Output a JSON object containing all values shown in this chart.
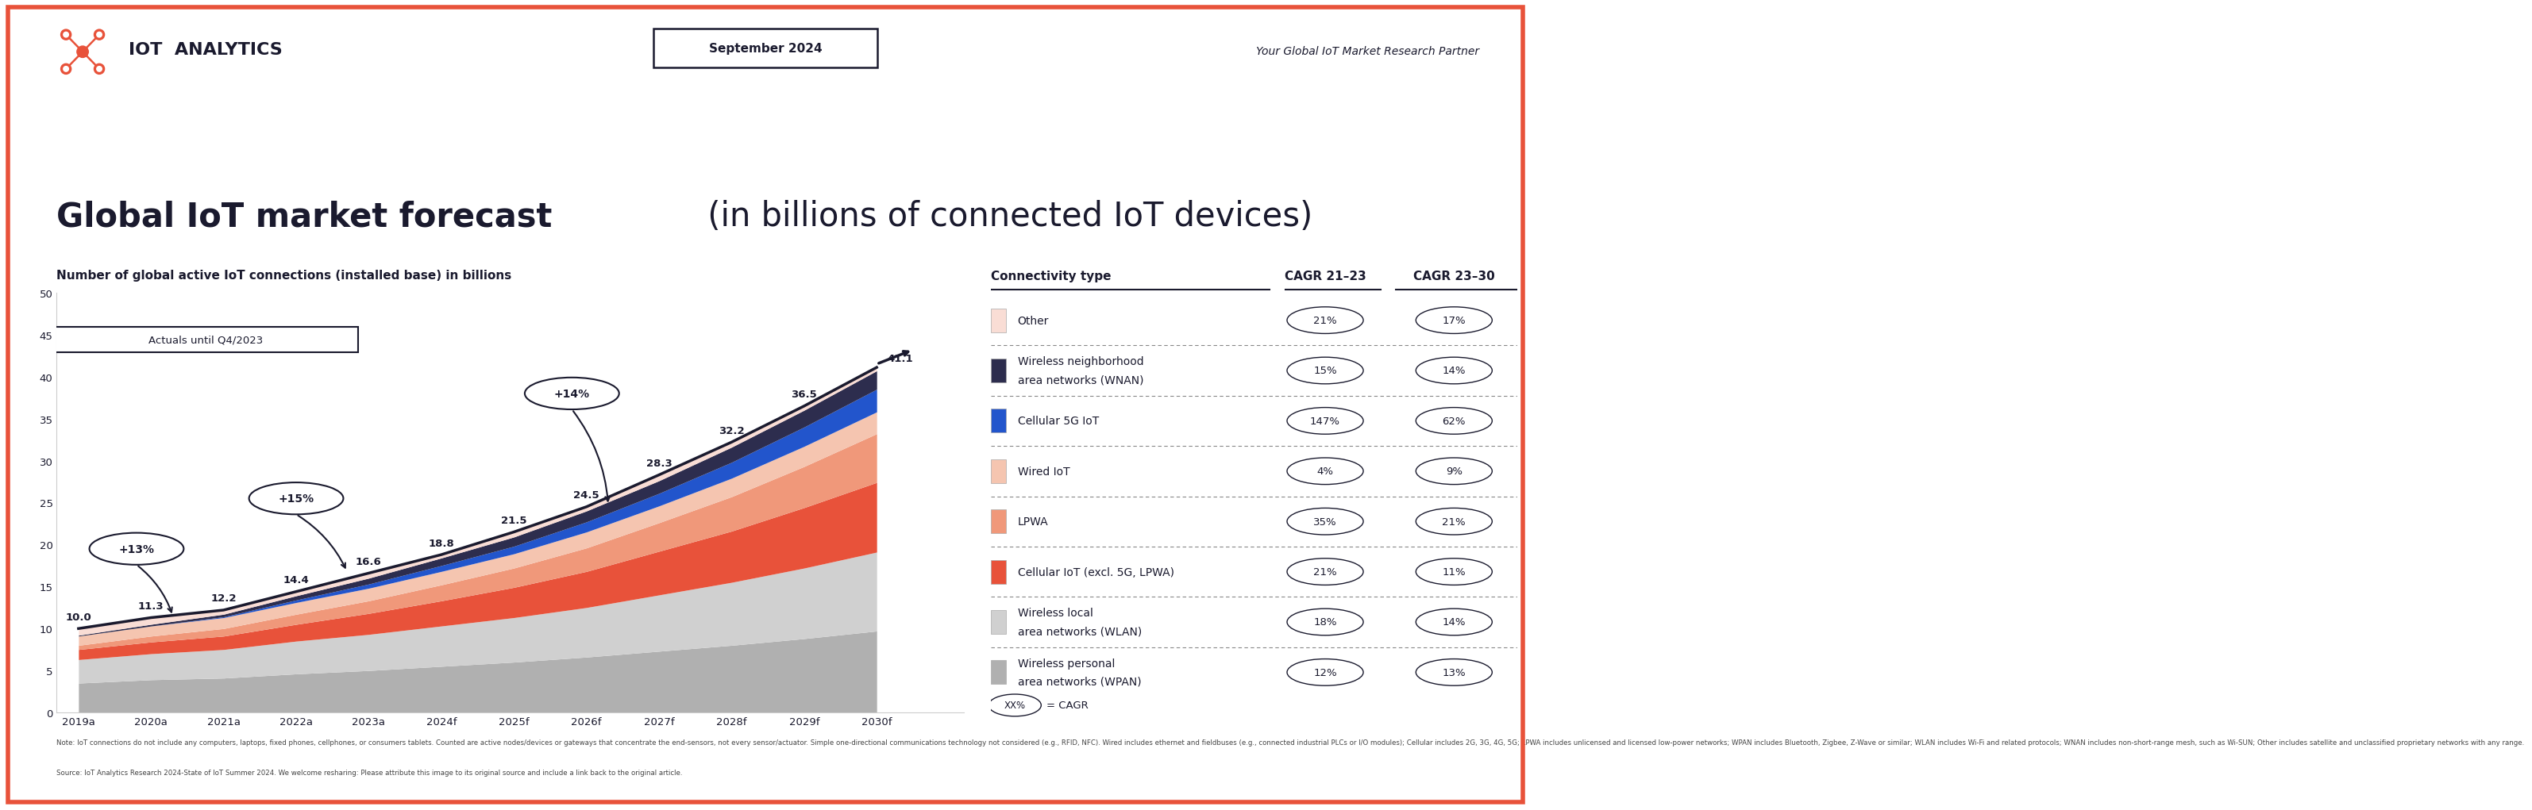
{
  "title_bold": "Global IoT market forecast",
  "title_regular": " (in billions of connected IoT devices)",
  "subtitle": "Number of global active IoT connections (installed base) in billions",
  "date_label": "September 2024",
  "partner_label": "Your Global IoT Market Research Partner",
  "actuals_label": "Actuals until Q4/2023",
  "years": [
    2019,
    2020,
    2021,
    2022,
    2023,
    2024,
    2025,
    2026,
    2027,
    2028,
    2029,
    2030
  ],
  "year_labels": [
    "2019a",
    "2020a",
    "2021a",
    "2022a",
    "2023a",
    "2024f",
    "2025f",
    "2026f",
    "2027f",
    "2028f",
    "2029f",
    "2030f"
  ],
  "total_values": [
    10.0,
    11.3,
    12.2,
    14.4,
    16.6,
    18.8,
    21.5,
    24.5,
    28.3,
    32.2,
    36.5,
    41.1
  ],
  "stack_data": {
    "WPAN": [
      3.5,
      3.9,
      4.1,
      4.6,
      5.0,
      5.5,
      6.0,
      6.6,
      7.3,
      8.0,
      8.8,
      9.7
    ],
    "WLAN": [
      2.8,
      3.1,
      3.4,
      3.9,
      4.3,
      4.8,
      5.3,
      5.9,
      6.7,
      7.5,
      8.4,
      9.4
    ],
    "Cellular": [
      1.2,
      1.4,
      1.6,
      2.0,
      2.5,
      3.0,
      3.6,
      4.3,
      5.2,
      6.1,
      7.2,
      8.3
    ],
    "LPWA": [
      0.5,
      0.7,
      0.9,
      1.2,
      1.5,
      1.9,
      2.3,
      2.8,
      3.4,
      4.1,
      4.9,
      5.8
    ],
    "Wired": [
      1.1,
      1.2,
      1.3,
      1.4,
      1.5,
      1.6,
      1.7,
      1.9,
      2.0,
      2.2,
      2.4,
      2.6
    ],
    "5G": [
      0.0,
      0.0,
      0.1,
      0.3,
      0.5,
      0.7,
      0.9,
      1.2,
      1.5,
      1.9,
      2.3,
      2.7
    ],
    "WNAN": [
      0.1,
      0.2,
      0.3,
      0.5,
      0.7,
      0.9,
      1.1,
      1.3,
      1.5,
      1.8,
      2.0,
      2.2
    ],
    "Other": [
      0.8,
      0.8,
      0.5,
      0.5,
      0.6,
      0.4,
      0.6,
      0.5,
      0.7,
      0.6,
      0.5,
      0.4
    ]
  },
  "stack_colors": {
    "WPAN": "#b0b0b0",
    "WLAN": "#d0d0d0",
    "Cellular": "#e8523a",
    "LPWA": "#f0987a",
    "Wired": "#f5c5b0",
    "5G": "#2255cc",
    "WNAN": "#2d2d4e",
    "Other": "#f9ddd5"
  },
  "legend_items": [
    {
      "label": "Other",
      "color": "#f9ddd5",
      "cagr_2123": "21%",
      "cagr_2330": "17%"
    },
    {
      "label": "Wireless neighborhood\narea networks (WNAN)",
      "color": "#2d2d4e",
      "cagr_2123": "15%",
      "cagr_2330": "14%"
    },
    {
      "label": "Cellular 5G IoT",
      "color": "#2255cc",
      "cagr_2123": "147%",
      "cagr_2330": "62%"
    },
    {
      "label": "Wired IoT",
      "color": "#f5c5b0",
      "cagr_2123": "4%",
      "cagr_2330": "9%"
    },
    {
      "label": "LPWA",
      "color": "#f0987a",
      "cagr_2123": "35%",
      "cagr_2330": "21%"
    },
    {
      "label": "Cellular IoT (excl. 5G, LPWA)",
      "color": "#e8523a",
      "cagr_2123": "21%",
      "cagr_2330": "11%"
    },
    {
      "label": "Wireless local\narea networks (WLAN)",
      "color": "#d0d0d0",
      "cagr_2123": "18%",
      "cagr_2330": "14%"
    },
    {
      "label": "Wireless personal\narea networks (WPAN)",
      "color": "#b0b0b0",
      "cagr_2123": "12%",
      "cagr_2330": "13%"
    }
  ],
  "note_text": "IoT connections do not include any computers, laptops, fixed phones, cellphones, or consumers tablets. Counted are active nodes/devices or gateways that concentrate the end-sensors, not every sensor/actuator. Simple one-directional communications technology not considered (e.g., RFID, NFC). Wired includes ethernet and fieldbuses (e.g., connected industrial PLCs or I/O modules); Cellular includes 2G, 3G, 4G, 5G; LPWA includes unlicensed and licensed low-power networks; WPAN includes Bluetooth, Zigbee, Z-Wave or similar; WLAN includes Wi-Fi and related protocols; WNAN includes non-short-range mesh, such as Wi-SUN; Other includes satellite and unclassified proprietary networks with any range.",
  "source_text": "Source: IoT Analytics Research 2024-State of IoT Summer 2024. We welcome resharing: Please attribute this image to its original source and include a link back to the original article.",
  "border_color": "#e8523a",
  "bg_color": "#ffffff",
  "text_color": "#1a1a2e",
  "ylim": [
    0,
    50
  ]
}
